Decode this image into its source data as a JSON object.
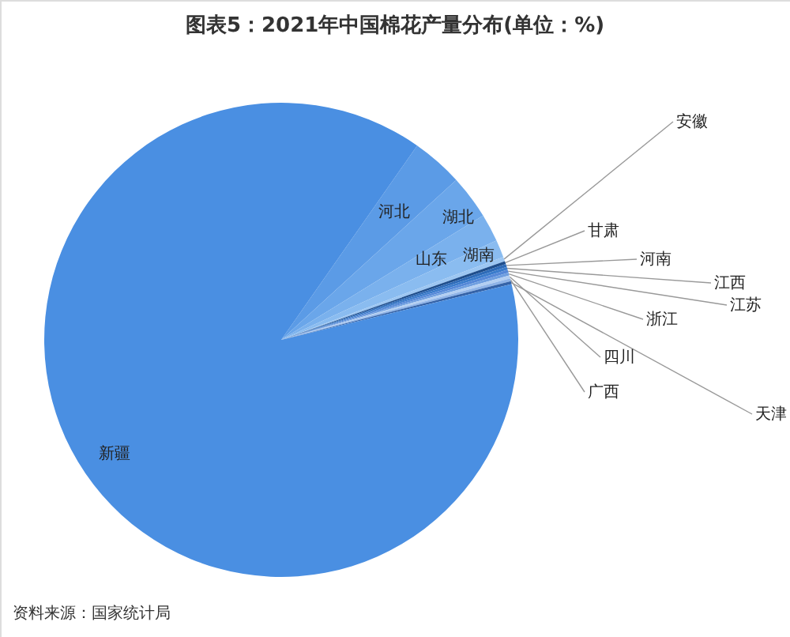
{
  "chart_data": {
    "type": "pie",
    "title": "图表5：2021年中国棉花产量分布(单位：%)",
    "categories": [
      "河北",
      "湖北",
      "山东",
      "湖南",
      "安徽",
      "甘肃",
      "河南",
      "江西",
      "江苏",
      "浙江",
      "四川",
      "广西",
      "天津",
      "新疆"
    ],
    "values": [
      3.5,
      3.0,
      1.9,
      1.2,
      0.3,
      0.2,
      0.2,
      0.2,
      0.2,
      0.2,
      0.2,
      0.2,
      0.2,
      88.5
    ],
    "colors": [
      "#5b9be6",
      "#6aa6ea",
      "#7ab1ed",
      "#8abcf0",
      "#9cc6f2",
      "#1f4e8c",
      "#2e6bb8",
      "#3b7ccc",
      "#5588d8",
      "#6f9fe0",
      "#b3cff2",
      "#8fb4e8",
      "#3563a8",
      "#4a8fe2"
    ],
    "annotations": [
      "资料来源：国家统计局"
    ]
  }
}
